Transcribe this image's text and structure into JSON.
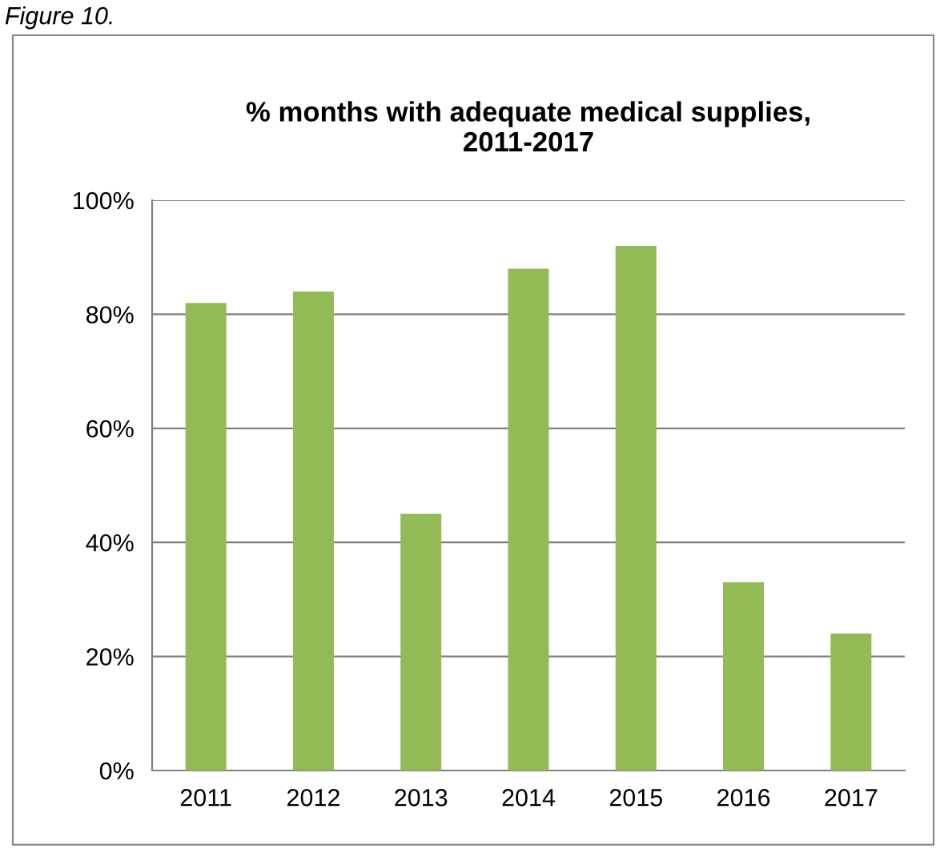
{
  "chart_data": {
    "type": "bar",
    "title": "% months with adequate medical supplies,\n2011-2017",
    "categories": [
      "2011",
      "2012",
      "2013",
      "2014",
      "2015",
      "2016",
      "2017"
    ],
    "values": [
      82,
      84,
      45,
      88,
      92,
      33,
      24
    ],
    "color": "#92bb55",
    "ylim": [
      0,
      100
    ],
    "yticks": [
      {
        "value": 0,
        "label": "0%"
      },
      {
        "value": 20,
        "label": "20%"
      },
      {
        "value": 40,
        "label": "40%"
      },
      {
        "value": 60,
        "label": "60%"
      },
      {
        "value": 80,
        "label": "80%"
      },
      {
        "value": 100,
        "label": "100%"
      }
    ],
    "grid": "y",
    "legend": false,
    "annotations": [
      "Figure 10."
    ]
  }
}
